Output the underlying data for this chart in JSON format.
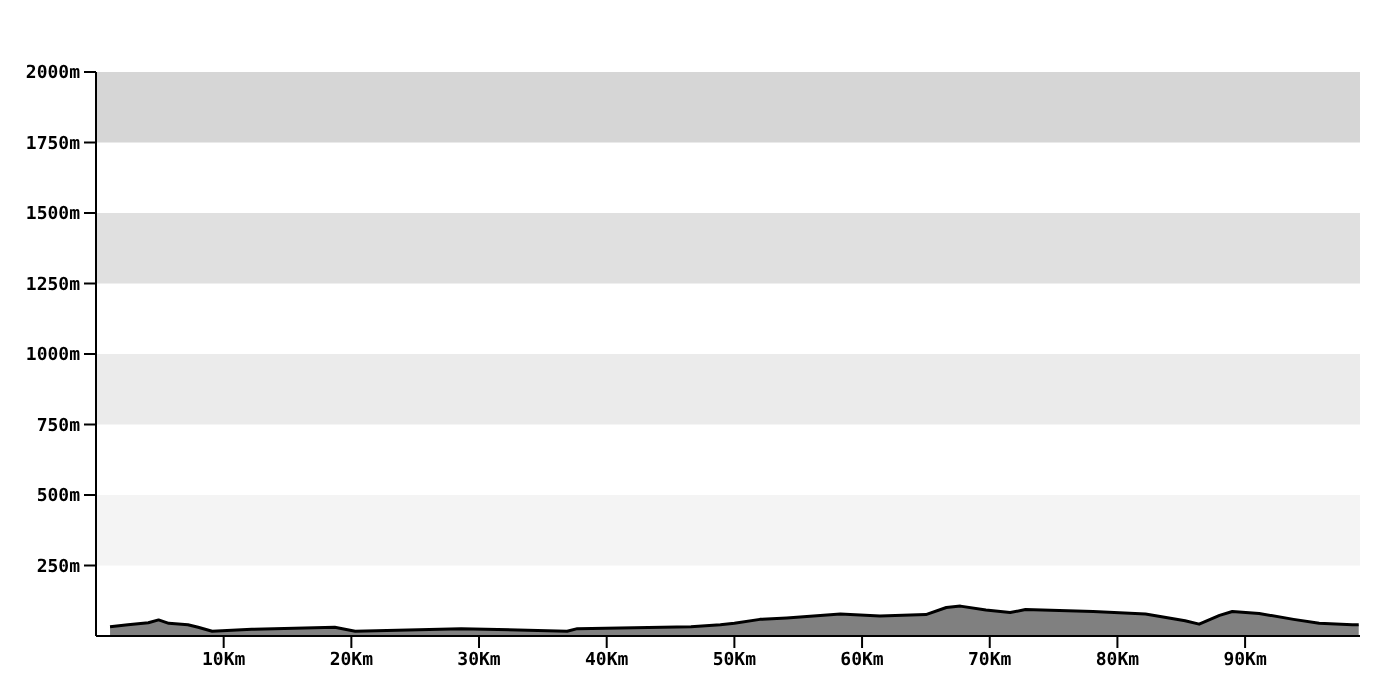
{
  "chart_data": {
    "type": "area",
    "x": [
      1.1,
      2.5,
      4.1,
      4.9,
      5.7,
      7.2,
      8.0,
      9.1,
      12.2,
      18.7,
      20.3,
      28.6,
      36.9,
      37.7,
      46.6,
      48.9,
      50.0,
      52.0,
      54.1,
      58.3,
      61.4,
      65.0,
      66.6,
      67.7,
      69.7,
      71.6,
      72.8,
      78.1,
      82.2,
      85.3,
      86.4,
      88.0,
      89.0,
      91.1,
      93.8,
      95.8,
      98.4,
      98.9
    ],
    "values": [
      33,
      40,
      47,
      57,
      45,
      40,
      31,
      17,
      24,
      31,
      17,
      26,
      17,
      26,
      33,
      40,
      45,
      59,
      64,
      78,
      71,
      76,
      101,
      106,
      92,
      83,
      94,
      87,
      78,
      54,
      42,
      73,
      87,
      80,
      59,
      45,
      40,
      40
    ],
    "color": "#808080",
    "xlim": [
      0,
      99
    ],
    "xticks": [
      {
        "value": 10,
        "label": "10Km"
      },
      {
        "value": 20,
        "label": "20Km"
      },
      {
        "value": 30,
        "label": "30Km"
      },
      {
        "value": 40,
        "label": "40Km"
      },
      {
        "value": 50,
        "label": "50Km"
      },
      {
        "value": 60,
        "label": "60Km"
      },
      {
        "value": 70,
        "label": "70Km"
      },
      {
        "value": 80,
        "label": "80Km"
      },
      {
        "value": 90,
        "label": "90Km"
      }
    ],
    "ylim": [
      0,
      2000
    ],
    "yticks": [
      {
        "value": 250,
        "label": "250m"
      },
      {
        "value": 500,
        "label": "500m"
      },
      {
        "value": 750,
        "label": "750m"
      },
      {
        "value": 1000,
        "label": "1000m"
      },
      {
        "value": 1250,
        "label": "1250m"
      },
      {
        "value": 1500,
        "label": "1500m"
      },
      {
        "value": 1750,
        "label": "1750m"
      },
      {
        "value": 2000,
        "label": "2000m"
      }
    ],
    "bands": [
      {
        "axis": "y",
        "from": 250,
        "to": 500,
        "color": "#f4f4f4"
      },
      {
        "axis": "y",
        "from": 750,
        "to": 1000,
        "color": "#ebebeb"
      },
      {
        "axis": "y",
        "from": 1250,
        "to": 1500,
        "color": "#e0e0e0"
      },
      {
        "axis": "y",
        "from": 1750,
        "to": 2000,
        "color": "#d6d6d6"
      }
    ],
    "grid": false,
    "legend": false
  }
}
